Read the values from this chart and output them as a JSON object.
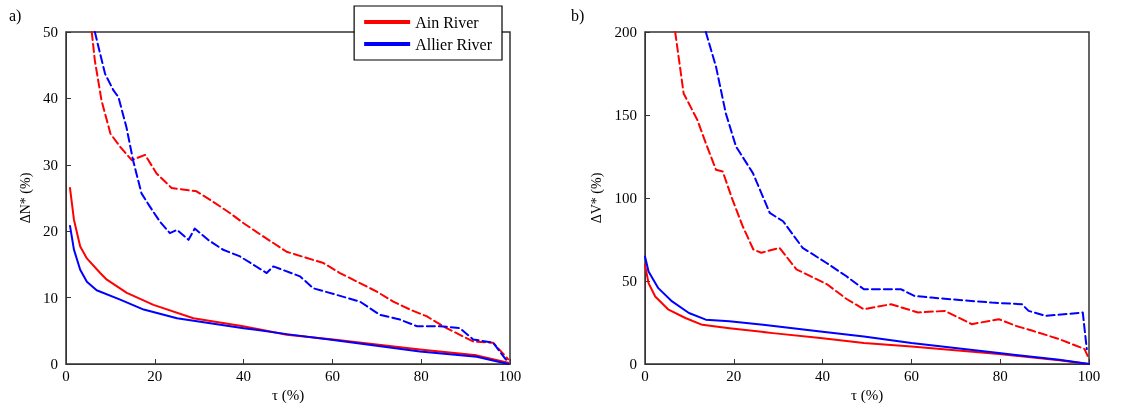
{
  "chart_data": [
    {
      "type": "line",
      "title": "a)",
      "xlabel": "τ (%)",
      "ylabel": "ΔN* (%)",
      "xlim": [
        0,
        100
      ],
      "xticks": [
        0,
        20,
        40,
        60,
        80,
        100
      ],
      "ylim": [
        0,
        50
      ],
      "yticks": [
        0,
        10,
        20,
        30,
        40,
        50
      ],
      "grid": false,
      "marker": "none",
      "legend": "top right",
      "series": [
        {
          "name": "Ain River",
          "color": "#ff0000",
          "line_style": "solid",
          "x": [
            0.9,
            1.8,
            3.2,
            4.7,
            7.7,
            9.2,
            13.7,
            19.7,
            28.7,
            39.9,
            49.7,
            60.2,
            79.7,
            92.5,
            99.6
          ],
          "values": [
            26.5,
            21.7,
            17.7,
            15.9,
            13.7,
            12.7,
            10.7,
            8.9,
            6.9,
            5.7,
            4.4,
            3.7,
            2.2,
            1.3,
            0.2
          ]
        },
        {
          "name": "Allier River",
          "color": "#0000ff",
          "line_style": "solid",
          "x": [
            0.9,
            1.8,
            3.2,
            4.7,
            6.9,
            12.2,
            17.5,
            25,
            40,
            49.7,
            60.2,
            79.7,
            92.5,
            99.6
          ],
          "values": [
            20.8,
            17.2,
            14.2,
            12.4,
            11.1,
            9.7,
            8.2,
            6.9,
            5.4,
            4.5,
            3.6,
            1.9,
            1.1,
            0
          ]
        },
        {
          "color": "#ff0000",
          "line_style": "dashed",
          "x": [
            5.8,
            6.5,
            8,
            10,
            12.2,
            14.8,
            17.8,
            20.4,
            23.8,
            29.4,
            33.2,
            37,
            40,
            44,
            49.7,
            58,
            61.7,
            70,
            73.7,
            77.5,
            81.2,
            85.7,
            91.7,
            96.2,
            99.6
          ],
          "values": [
            50,
            45.7,
            39.7,
            34.7,
            32.7,
            30.7,
            31.5,
            28.7,
            26.5,
            26,
            24.4,
            22.7,
            21.2,
            19.4,
            16.9,
            15.2,
            13.7,
            10.9,
            9.4,
            8.2,
            7.2,
            5.4,
            3.4,
            3.2,
            0.7
          ]
        },
        {
          "color": "#0000ff",
          "line_style": "dashed",
          "x": [
            6.5,
            7.7,
            8.8,
            10.7,
            11.8,
            13.6,
            15.1,
            17,
            18.9,
            21.2,
            23.4,
            25,
            27.6,
            29,
            32,
            35.4,
            39.2,
            45.2,
            46.7,
            52.7,
            55.7,
            61,
            66.2,
            70.7,
            75.2,
            79,
            84.2,
            88.7,
            91.7,
            96.2,
            99.6
          ],
          "values": [
            50,
            46.7,
            43.7,
            41.2,
            40.2,
            35.7,
            30.7,
            25.7,
            23.7,
            21.4,
            19.7,
            20.2,
            18.7,
            20.4,
            18.7,
            17.2,
            16.2,
            13.7,
            14.7,
            13.2,
            11.4,
            10.4,
            9.4,
            7.4,
            6.7,
            5.7,
            5.7,
            5.4,
            3.7,
            3.2,
            0.2
          ]
        }
      ]
    },
    {
      "type": "line",
      "title": "b)",
      "xlabel": "τ (%)",
      "ylabel": "ΔV* (%)",
      "xlim": [
        0,
        100
      ],
      "xticks": [
        0,
        20,
        40,
        60,
        80,
        100
      ],
      "ylim": [
        0,
        200
      ],
      "yticks": [
        0,
        50,
        100,
        150,
        200
      ],
      "grid": false,
      "marker": "none",
      "legend": false,
      "series": [
        {
          "color": "#ff0000",
          "line_style": "solid",
          "x": [
            0,
            0.8,
            2.3,
            5.3,
            9.1,
            12.9,
            19,
            28.8,
            39.5,
            49.3,
            60,
            79.7,
            93.3,
            100
          ],
          "values": [
            59.7,
            48.7,
            40.7,
            32.7,
            27.7,
            23.6,
            21.6,
            18.6,
            15.6,
            12.6,
            10.6,
            6,
            2.2,
            0
          ]
        },
        {
          "color": "#0000ff",
          "line_style": "solid",
          "x": [
            0,
            0.8,
            3,
            6.1,
            9.9,
            13.7,
            19,
            26.6,
            39.5,
            49.3,
            60,
            79.7,
            93.3,
            100
          ],
          "values": [
            64.7,
            55.7,
            45.7,
            37.7,
            30.7,
            26.7,
            25.7,
            23.6,
            19.6,
            16.6,
            12.6,
            6.6,
            2.6,
            0
          ]
        },
        {
          "color": "#ff0000",
          "line_style": "dashed",
          "x": [
            6.8,
            8.7,
            11.8,
            13.7,
            16,
            17.5,
            19.7,
            22,
            24.4,
            26.2,
            30.3,
            34.1,
            41,
            45.5,
            49.3,
            55.4,
            61.5,
            67.5,
            73.6,
            79.7,
            83.5,
            87.3,
            93.3,
            99,
            100
          ],
          "values": [
            200,
            163,
            147,
            133,
            117,
            116,
            99,
            83,
            69,
            67,
            70,
            57,
            48,
            39,
            33,
            36,
            31,
            32,
            24,
            27,
            23,
            20,
            15,
            9,
            3
          ]
        },
        {
          "color": "#0000ff",
          "line_style": "dashed",
          "x": [
            13.7,
            16,
            18.2,
            20.5,
            24.3,
            28.1,
            31.1,
            35.5,
            40.8,
            45.3,
            49.3,
            57.7,
            60.7,
            64.5,
            69,
            78.1,
            84.9,
            86.4,
            90.3,
            98.6,
            99.5
          ],
          "values": [
            200,
            179,
            151,
            131,
            115,
            91,
            86,
            70,
            61,
            53,
            45,
            45,
            41,
            40,
            39,
            37,
            36,
            32,
            29,
            31,
            9
          ]
        }
      ]
    }
  ]
}
